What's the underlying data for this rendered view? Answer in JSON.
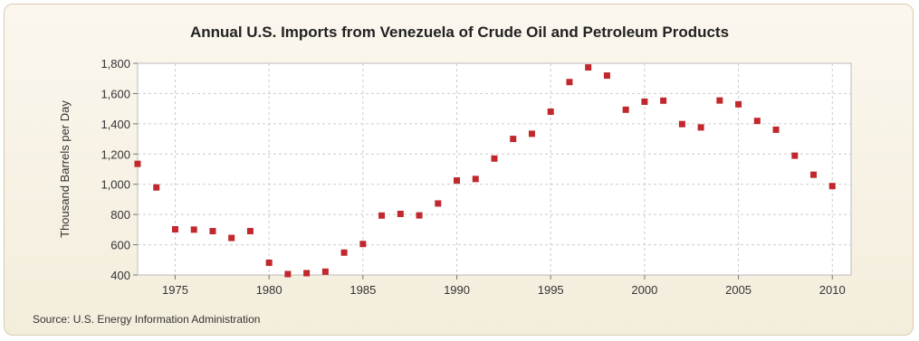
{
  "chart_data": {
    "type": "scatter",
    "title": "Annual U.S. Imports from Venezuela of Crude Oil and Petroleum Products",
    "xlabel": "",
    "ylabel": "Thousand Barrels per Day",
    "source": "Source: U.S. Energy Information Administration",
    "xlim": [
      1973,
      2011
    ],
    "ylim": [
      400,
      1800
    ],
    "xticks": [
      1975,
      1980,
      1985,
      1990,
      1995,
      2000,
      2005,
      2010
    ],
    "yticks": [
      400,
      600,
      800,
      1000,
      1200,
      1400,
      1600,
      1800
    ],
    "ytick_labels": [
      "400",
      "600",
      "800",
      "1,000",
      "1,200",
      "1,400",
      "1,600",
      "1,800"
    ],
    "grid": true,
    "marker_color": "#c0282d",
    "series": [
      {
        "x": [
          1973,
          1974,
          1975,
          1976,
          1977,
          1978,
          1979,
          1980,
          1981,
          1982,
          1983,
          1984,
          1985,
          1986,
          1987,
          1988,
          1989,
          1990,
          1991,
          1992,
          1993,
          1994,
          1995,
          1996,
          1997,
          1998,
          1999,
          2000,
          2001,
          2002,
          2003,
          2004,
          2005,
          2006,
          2007,
          2008,
          2009,
          2010
        ],
        "values": [
          1135,
          979,
          702,
          700,
          690,
          645,
          690,
          481,
          406,
          412,
          422,
          548,
          605,
          793,
          804,
          794,
          873,
          1025,
          1035,
          1170,
          1300,
          1334,
          1480,
          1676,
          1773,
          1719,
          1493,
          1546,
          1553,
          1398,
          1376,
          1554,
          1529,
          1419,
          1361,
          1189,
          1063,
          988
        ]
      }
    ]
  }
}
